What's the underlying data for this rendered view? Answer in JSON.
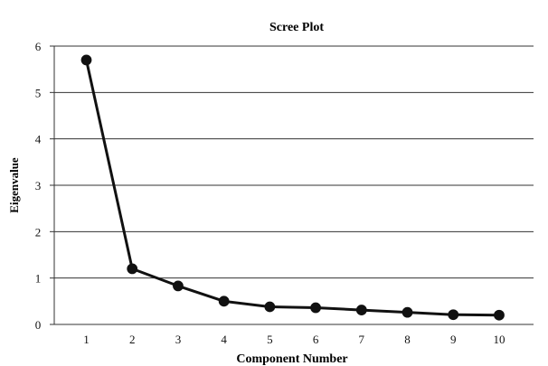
{
  "chart_data": {
    "type": "line",
    "title": "Scree Plot",
    "xlabel": "Component Number",
    "ylabel": "Eigenvalue",
    "x": [
      1,
      2,
      3,
      4,
      5,
      6,
      7,
      8,
      9,
      10
    ],
    "series": [
      {
        "values": [
          5.7,
          1.2,
          0.83,
          0.5,
          0.38,
          0.36,
          0.31,
          0.26,
          0.21,
          0.2
        ]
      }
    ],
    "xlim": [
      0.3,
      10.75
    ],
    "ylim": [
      0,
      6
    ],
    "x_ticks": [
      "1",
      "2",
      "3",
      "4",
      "5",
      "6",
      "7",
      "8",
      "9",
      "10"
    ],
    "y_ticks": [
      "0",
      "1",
      "2",
      "3",
      "4",
      "5",
      "6"
    ],
    "grid": "horizontal",
    "legend": "none",
    "colors": {
      "line": "#111111",
      "marker": "#111111",
      "grid": "#333333",
      "text": "#111111"
    }
  }
}
